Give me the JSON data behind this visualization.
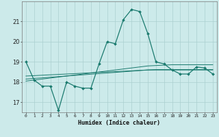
{
  "title": "",
  "xlabel": "Humidex (Indice chaleur)",
  "ylabel": "",
  "bg_color": "#cceaea",
  "grid_color": "#aacfcf",
  "line_color": "#1a7a6e",
  "x_values": [
    0,
    1,
    2,
    3,
    4,
    5,
    6,
    7,
    8,
    9,
    10,
    11,
    12,
    13,
    14,
    15,
    16,
    17,
    18,
    19,
    20,
    21,
    22,
    23
  ],
  "main_line": [
    19.0,
    18.1,
    17.8,
    17.8,
    16.6,
    18.0,
    17.8,
    17.7,
    17.7,
    18.9,
    20.0,
    19.9,
    21.1,
    21.6,
    21.5,
    20.4,
    19.0,
    18.9,
    18.6,
    18.4,
    18.4,
    18.75,
    18.7,
    18.4
  ],
  "trend1": [
    18.05,
    18.1,
    18.15,
    18.2,
    18.25,
    18.3,
    18.35,
    18.4,
    18.45,
    18.5,
    18.55,
    18.6,
    18.65,
    18.7,
    18.75,
    18.8,
    18.82,
    18.84,
    18.86,
    18.86,
    18.86,
    18.86,
    18.86,
    18.86
  ],
  "trend2": [
    18.15,
    18.18,
    18.21,
    18.24,
    18.27,
    18.3,
    18.33,
    18.36,
    18.39,
    18.42,
    18.45,
    18.48,
    18.51,
    18.54,
    18.57,
    18.6,
    18.62,
    18.62,
    18.62,
    18.62,
    18.62,
    18.62,
    18.62,
    18.62
  ],
  "trend3": [
    18.3,
    18.32,
    18.34,
    18.36,
    18.38,
    18.4,
    18.42,
    18.44,
    18.46,
    18.48,
    18.5,
    18.52,
    18.54,
    18.56,
    18.58,
    18.6,
    18.6,
    18.6,
    18.6,
    18.6,
    18.6,
    18.6,
    18.6,
    18.6
  ],
  "ylim": [
    16.5,
    22.0
  ],
  "yticks": [
    17,
    18,
    19,
    20,
    21
  ],
  "xticks": [
    0,
    1,
    2,
    3,
    4,
    5,
    6,
    7,
    8,
    9,
    10,
    11,
    12,
    13,
    14,
    15,
    16,
    17,
    18,
    19,
    20,
    21,
    22,
    23
  ],
  "xlabel_fontsize": 6.0,
  "xtick_fontsize": 4.5,
  "ytick_fontsize": 6.0
}
